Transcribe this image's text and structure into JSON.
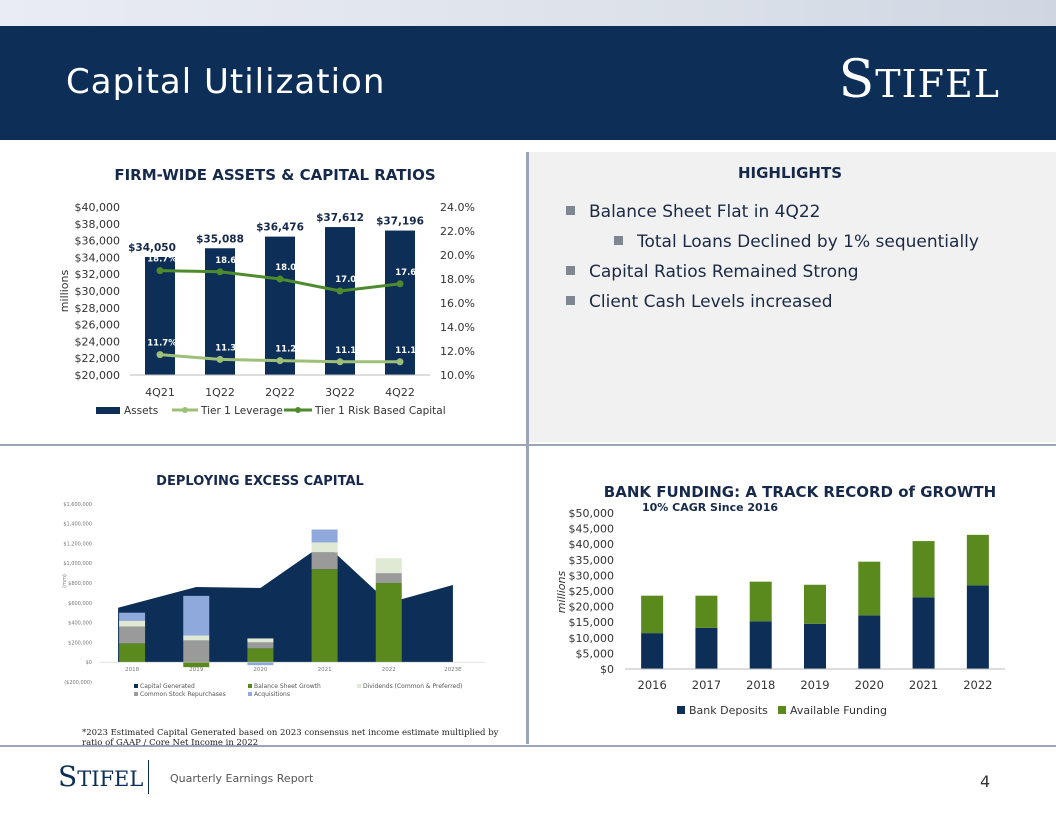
{
  "header": {
    "title": "Capital Utilization",
    "logo": "Stifel"
  },
  "highlights": {
    "title": "HIGHLIGHTS",
    "items": [
      "Balance Sheet Flat in 4Q22",
      "Total Loans Declined by 1% sequentially",
      "Capital Ratios Remained Strong",
      "Client Cash Levels increased"
    ]
  },
  "footnote": "*2023 Estimated Capital Generated based on 2023 consensus net income estimate multiplied by ratio of GAAP / Core Net Income in 2022",
  "footer": {
    "logo": "Stifel",
    "text": "Quarterly Earnings Report",
    "page": "4"
  },
  "chart_data": [
    {
      "type": "bar",
      "title": "FIRM-WIDE ASSETS & CAPITAL RATIOS",
      "ylabel": "millions",
      "categories": [
        "4Q21",
        "1Q22",
        "2Q22",
        "3Q22",
        "4Q22"
      ],
      "ylim": [
        20000,
        40000
      ],
      "y2lim": [
        10.0,
        24.0
      ],
      "y_ticks": [
        "$20,000",
        "$22,000",
        "$24,000",
        "$26,000",
        "$28,000",
        "$30,000",
        "$32,000",
        "$34,000",
        "$36,000",
        "$38,000",
        "$40,000"
      ],
      "y2_ticks": [
        "10.0%",
        "12.0%",
        "14.0%",
        "16.0%",
        "18.0%",
        "20.0%",
        "22.0%",
        "24.0%"
      ],
      "series": [
        {
          "name": "Assets",
          "type": "bar",
          "values": [
            34050,
            35088,
            36476,
            37612,
            37196
          ],
          "labels": [
            "$34,050",
            "$35,088",
            "$36,476",
            "$37,612",
            "$37,196"
          ],
          "color": "#0d2f57"
        },
        {
          "name": "Tier 1 Leverage",
          "type": "line",
          "axis": "right",
          "values": [
            11.7,
            11.3,
            11.2,
            11.1,
            11.1
          ],
          "labels": [
            "11.7%",
            "11.3%",
            "11.2%",
            "11.1%",
            "11.1%"
          ],
          "color": "#9dbf78"
        },
        {
          "name": "Tier 1 Risk Based Capital",
          "type": "line",
          "axis": "right",
          "values": [
            18.7,
            18.6,
            18.0,
            17.0,
            17.6
          ],
          "labels": [
            "18.7%",
            "18.6%",
            "18.0%",
            "17.0%",
            "17.6%"
          ],
          "color": "#4e8a2e"
        }
      ]
    },
    {
      "type": "bar",
      "title": "DEPLOYING EXCESS CAPITAL",
      "ylabel": "(mm)",
      "categories": [
        "2018",
        "2019",
        "2020",
        "2021",
        "2022",
        "2023E"
      ],
      "ylim": [
        -200,
        1800
      ],
      "y_ticks": [
        "($200,000)",
        "$0",
        "$200,000",
        "$400,000",
        "$600,000",
        "$800,000",
        "$1,000,000",
        "$1,200,000",
        "$1,400,000",
        "$1,600,000"
      ],
      "series": [
        {
          "name": "Capital Generated",
          "type": "area",
          "values": [
            550,
            760,
            750,
            1200,
            600,
            780
          ],
          "color": "#0d2f57"
        },
        {
          "name": "Balance Sheet Growth",
          "type": "bar",
          "values": [
            190,
            -50,
            140,
            940,
            800,
            null
          ],
          "color": "#5a8a1e"
        },
        {
          "name": "Common Stock Repurchases",
          "type": "bar",
          "values": [
            170,
            220,
            60,
            170,
            100,
            null
          ],
          "color": "#9a9a9a"
        },
        {
          "name": "Dividends (Common & Preferred)",
          "type": "bar",
          "values": [
            60,
            50,
            40,
            100,
            150,
            null
          ],
          "color": "#dfe9d4"
        },
        {
          "name": "Acquisitions",
          "type": "bar",
          "values": [
            80,
            400,
            -30,
            130,
            0,
            null
          ],
          "color": "#8fa9dc"
        }
      ]
    },
    {
      "type": "bar",
      "title": "BANK FUNDING: A TRACK RECORD of GROWTH",
      "subtitle": "10% CAGR Since 2016",
      "ylabel": "millions",
      "categories": [
        "2016",
        "2017",
        "2018",
        "2019",
        "2020",
        "2021",
        "2022"
      ],
      "ylim": [
        0,
        50000
      ],
      "y_ticks": [
        "$0",
        "$5,000",
        "$10,000",
        "$15,000",
        "$20,000",
        "$25,000",
        "$30,000",
        "$35,000",
        "$40,000",
        "$45,000",
        "$50,000"
      ],
      "series": [
        {
          "name": "Bank Deposits",
          "values": [
            11500,
            13200,
            15300,
            14500,
            17200,
            23000,
            26800
          ],
          "color": "#0d2f57"
        },
        {
          "name": "Available Funding",
          "values": [
            12000,
            10300,
            12700,
            12500,
            17200,
            18000,
            16200
          ],
          "color": "#5a8a1e"
        }
      ]
    }
  ]
}
